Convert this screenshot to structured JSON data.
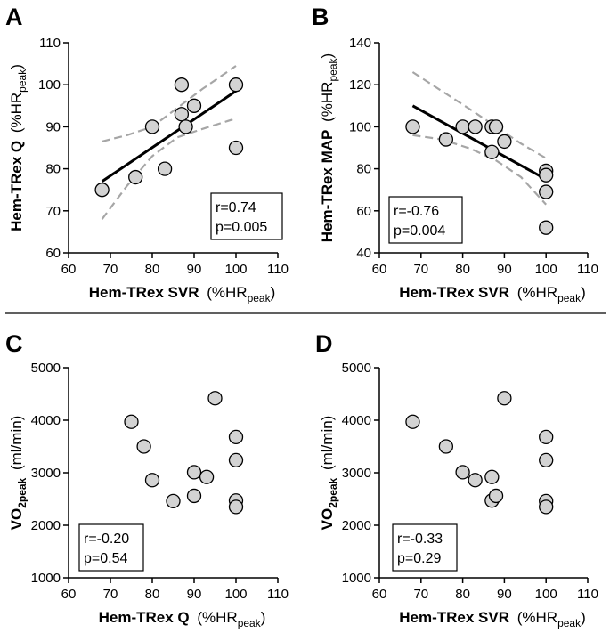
{
  "chart_data": [
    {
      "panel": "A",
      "type": "scatter",
      "xlabel": {
        "main": "Hem-TRex SVR",
        "unit_pre": "(%HR",
        "unit_sub": "peak",
        "unit_post": ")"
      },
      "ylabel": {
        "main": "Hem-TRex Q",
        "unit_pre": "(%HR",
        "unit_sub": "peak",
        "unit_post": ")"
      },
      "xlim": [
        60,
        110
      ],
      "ylim": [
        60,
        110
      ],
      "xticks": [
        60,
        70,
        80,
        90,
        100,
        110
      ],
      "yticks": [
        60,
        70,
        80,
        90,
        100,
        110
      ],
      "points": [
        [
          68,
          75
        ],
        [
          76,
          78
        ],
        [
          80,
          90
        ],
        [
          83,
          80
        ],
        [
          87,
          100
        ],
        [
          87,
          93
        ],
        [
          88,
          90
        ],
        [
          90,
          95
        ],
        [
          100,
          100
        ],
        [
          100,
          85
        ]
      ],
      "fit_line": [
        [
          68,
          77
        ],
        [
          100,
          98.5
        ]
      ],
      "ci_upper": [
        [
          68,
          86.5
        ],
        [
          74,
          88
        ],
        [
          80,
          90
        ],
        [
          86,
          94.5
        ],
        [
          92,
          99
        ],
        [
          100,
          104.5
        ]
      ],
      "ci_lower": [
        [
          68,
          68
        ],
        [
          74,
          76
        ],
        [
          80,
          83
        ],
        [
          86,
          87.5
        ],
        [
          92,
          89.5
        ],
        [
          100,
          92
        ]
      ],
      "stats": {
        "r": "r=0.74",
        "p": "p=0.005"
      },
      "stats_position": "bottom-right"
    },
    {
      "panel": "B",
      "type": "scatter",
      "xlabel": {
        "main": "Hem-TRex SVR",
        "unit_pre": "(%HR",
        "unit_sub": "peak",
        "unit_post": ")"
      },
      "ylabel": {
        "main": "Hem-TRex MAP",
        "unit_pre": "(%HR",
        "unit_sub": "peak",
        "unit_post": ")"
      },
      "xlim": [
        60,
        110
      ],
      "ylim": [
        40,
        140
      ],
      "xticks": [
        60,
        70,
        80,
        90,
        100,
        110
      ],
      "yticks": [
        40,
        60,
        80,
        100,
        120,
        140
      ],
      "points": [
        [
          68,
          100
        ],
        [
          76,
          94
        ],
        [
          80,
          100
        ],
        [
          83,
          100
        ],
        [
          87,
          100
        ],
        [
          88,
          100
        ],
        [
          87,
          88
        ],
        [
          90,
          93
        ],
        [
          100,
          79
        ],
        [
          100,
          77
        ],
        [
          100,
          69
        ],
        [
          100,
          52
        ]
      ],
      "fit_line": [
        [
          68,
          110
        ],
        [
          100,
          75
        ]
      ],
      "ci_upper": [
        [
          68,
          126
        ],
        [
          75,
          117
        ],
        [
          82,
          108
        ],
        [
          88,
          100
        ],
        [
          94,
          92
        ],
        [
          100,
          85
        ]
      ],
      "ci_lower": [
        [
          68,
          96
        ],
        [
          75,
          94
        ],
        [
          82,
          89.5
        ],
        [
          88,
          84
        ],
        [
          94,
          76
        ],
        [
          100,
          63
        ]
      ],
      "stats": {
        "r": "r=-0.76",
        "p": "p=0.004"
      },
      "stats_position": "bottom-left"
    },
    {
      "panel": "C",
      "type": "scatter",
      "xlabel": {
        "main": "Hem-TRex Q",
        "unit_pre": "(%HR",
        "unit_sub": "peak",
        "unit_post": ")"
      },
      "ylabel": {
        "main": "VO",
        "main_sub": "2peak",
        "unit_pre": "(ml/min)",
        "unit_sub": "",
        "unit_post": ""
      },
      "xlim": [
        60,
        110
      ],
      "ylim": [
        1000,
        5000
      ],
      "xticks": [
        60,
        70,
        80,
        90,
        100,
        110
      ],
      "yticks": [
        1000,
        2000,
        3000,
        4000,
        5000
      ],
      "points": [
        [
          75,
          3970
        ],
        [
          78,
          3500
        ],
        [
          80,
          2860
        ],
        [
          85,
          2460
        ],
        [
          90,
          3010
        ],
        [
          90,
          2560
        ],
        [
          93,
          2920
        ],
        [
          95,
          4420
        ],
        [
          100,
          3680
        ],
        [
          100,
          3240
        ],
        [
          100,
          2470
        ],
        [
          100,
          2350
        ]
      ],
      "stats": {
        "r": "r=-0.20",
        "p": "p=0.54"
      },
      "stats_position": "bottom-left"
    },
    {
      "panel": "D",
      "type": "scatter",
      "xlabel": {
        "main": "Hem-TRex SVR",
        "unit_pre": "(%HR",
        "unit_sub": "peak",
        "unit_post": ")"
      },
      "ylabel": {
        "main": "VO",
        "main_sub": "2peak",
        "unit_pre": "(ml/min)",
        "unit_sub": "",
        "unit_post": ""
      },
      "xlim": [
        60,
        110
      ],
      "ylim": [
        1000,
        5000
      ],
      "xticks": [
        60,
        70,
        80,
        90,
        100,
        110
      ],
      "yticks": [
        1000,
        2000,
        3000,
        4000,
        5000
      ],
      "points": [
        [
          68,
          3970
        ],
        [
          76,
          3500
        ],
        [
          80,
          3010
        ],
        [
          83,
          2860
        ],
        [
          87,
          2920
        ],
        [
          87,
          2470
        ],
        [
          88,
          2560
        ],
        [
          90,
          4420
        ],
        [
          100,
          3680
        ],
        [
          100,
          3240
        ],
        [
          100,
          2460
        ],
        [
          100,
          2350
        ]
      ],
      "stats": {
        "r": "r=-0.33",
        "p": "p=0.29"
      },
      "stats_position": "bottom-left"
    }
  ],
  "colors": {
    "point_fill": "#d3d3d3",
    "point_stroke": "#000000",
    "fit_line": "#000000",
    "ci_line": "#a6a6a6",
    "axis": "#000000",
    "divider": "#000000"
  }
}
